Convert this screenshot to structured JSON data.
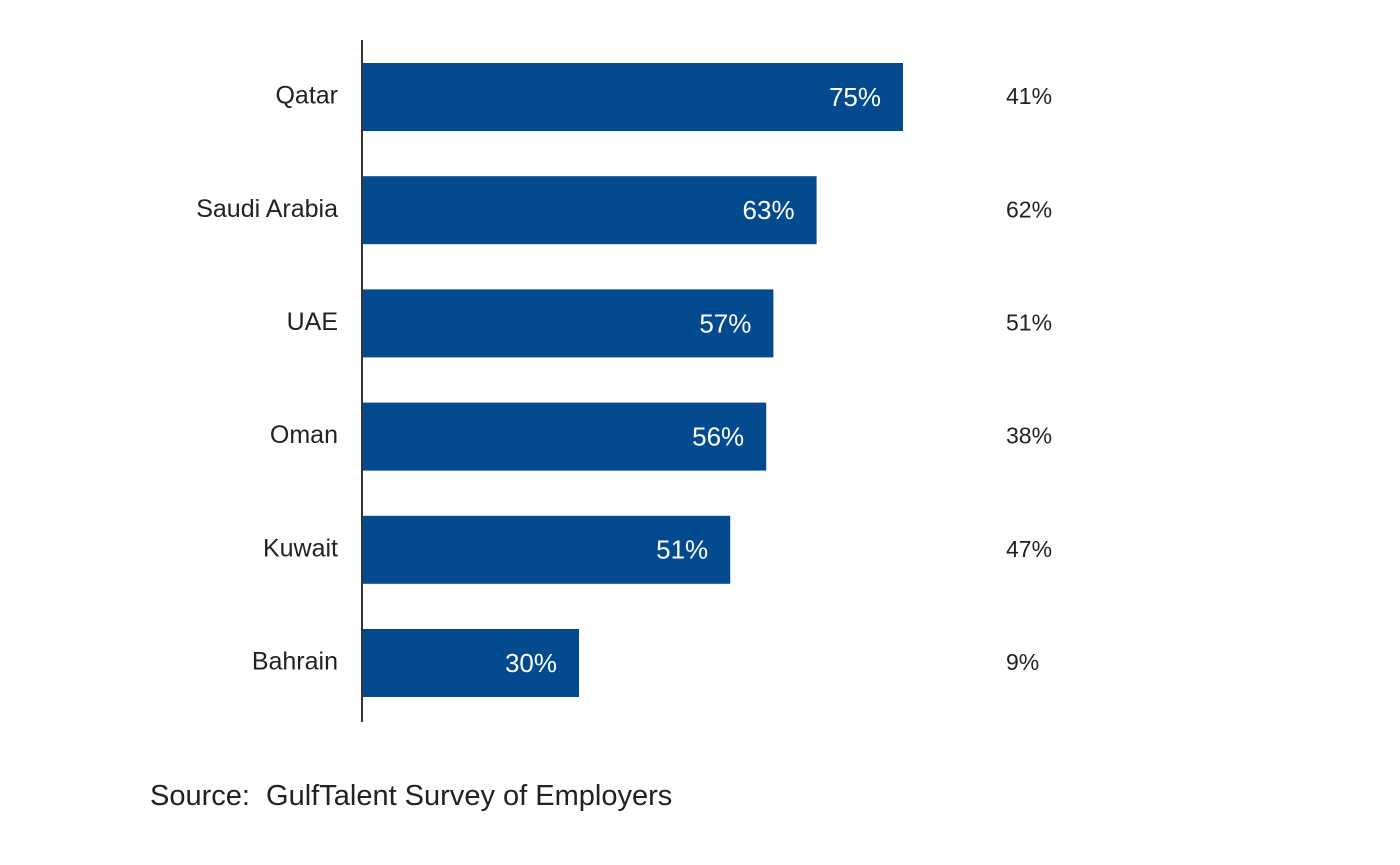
{
  "chart_data": {
    "type": "bar",
    "orientation": "horizontal",
    "categories": [
      "Qatar",
      "Saudi Arabia",
      "UAE",
      "Oman",
      "Kuwait",
      "Bahrain"
    ],
    "series": [
      {
        "values": [
          75,
          63,
          57,
          56,
          51,
          30
        ],
        "labels": [
          "75%",
          "63%",
          "57%",
          "56%",
          "51%",
          "30%"
        ],
        "color": "#034a8f"
      },
      {
        "values": [
          41,
          62,
          51,
          38,
          47,
          9
        ],
        "labels": [
          "41%",
          "62%",
          "51%",
          "38%",
          "47%",
          "9%"
        ]
      }
    ],
    "xlim": [
      0,
      100
    ],
    "grid": false,
    "legend": "none"
  },
  "source": "Source:  GulfTalent Survey of Employers"
}
